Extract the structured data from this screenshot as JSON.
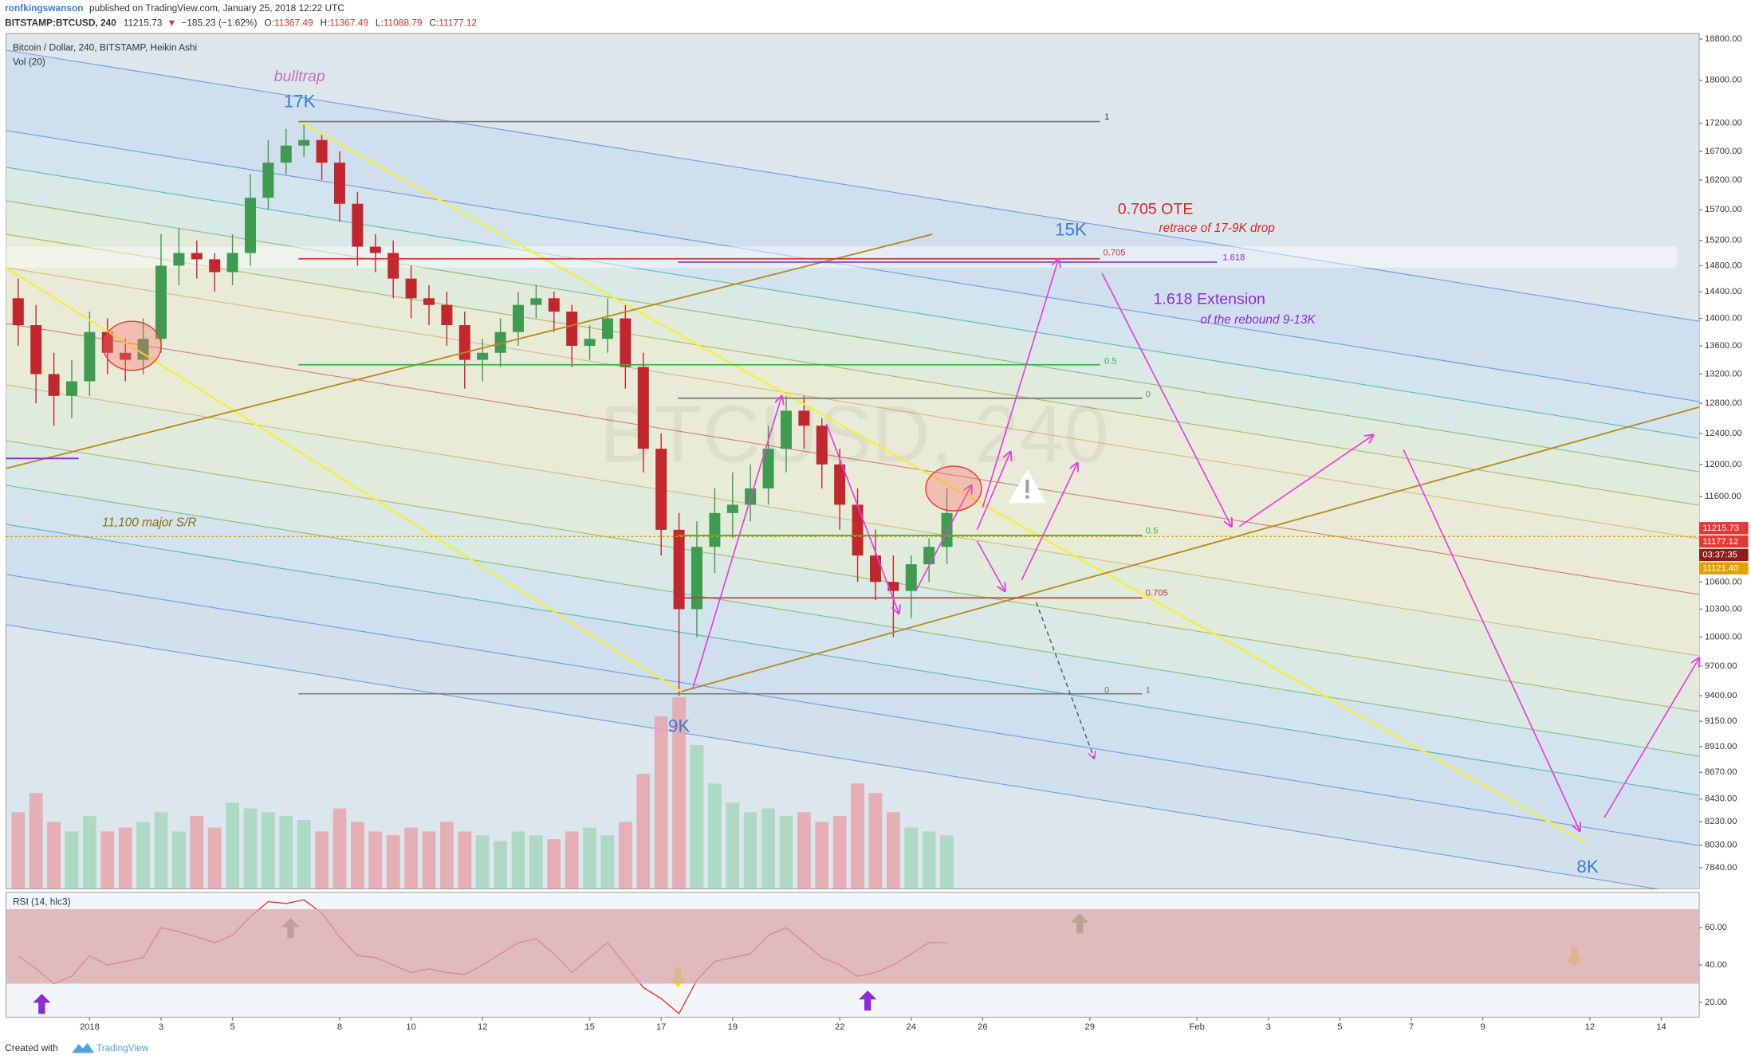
{
  "header": {
    "user": "ronfkingswanson",
    "published": "published on TradingView.com, January 25, 2018 12:22 UTC",
    "symbol": "BITSTAMP:BTCUSD, 240",
    "last": "11215.73",
    "arrow": "▼",
    "change": "−185.23 (−1.62%)",
    "ohlc": [
      [
        "O:",
        "11367.49"
      ],
      [
        "H:",
        "11367.49"
      ],
      [
        "L:",
        "11088.79"
      ],
      [
        "C:",
        "11177.12"
      ]
    ]
  },
  "chart_data": [
    {
      "type": "candlestick",
      "title": "Bitcoin / Dollar, 240, BITSTAMP, Heikin Ashi",
      "watermark": "BTCUSD, 240",
      "log_scale": true,
      "x": [
        -1,
        -0.5,
        0,
        0.5,
        1,
        1.5,
        2,
        2.5,
        3,
        3.5,
        4,
        4.5,
        5,
        5.5,
        6,
        6.5,
        7,
        7.5,
        8,
        8.5,
        9,
        9.5,
        10,
        10.5,
        11,
        11.5,
        12,
        12.5,
        13,
        13.5,
        14,
        14.5,
        15,
        15.5,
        16,
        16.5,
        17,
        17.5,
        18,
        18.5,
        19,
        19.5,
        20,
        20.5,
        21,
        21.5,
        22,
        22.5,
        23,
        23.5,
        24,
        24.5,
        25
      ],
      "open": [
        14300,
        13900,
        13200,
        12900,
        13100,
        13800,
        13500,
        13400,
        13700,
        14800,
        15000,
        14900,
        14700,
        15000,
        15900,
        16500,
        16800,
        16900,
        16500,
        15800,
        15100,
        15000,
        14600,
        14300,
        14200,
        13900,
        13400,
        13500,
        13800,
        14200,
        14300,
        14100,
        13600,
        13700,
        14000,
        13300,
        12200,
        11200,
        10300,
        11000,
        11400,
        11500,
        11700,
        12200,
        12700,
        12500,
        12000,
        11500,
        10900,
        10600,
        10500,
        10800,
        11000
      ],
      "high": [
        14600,
        14200,
        13500,
        13400,
        14100,
        14000,
        13700,
        14000,
        15300,
        15400,
        15200,
        15000,
        15300,
        16300,
        16900,
        17100,
        17200,
        17000,
        16700,
        16000,
        15300,
        15200,
        14800,
        14500,
        14400,
        14100,
        13700,
        14000,
        14400,
        14500,
        14400,
        14200,
        13900,
        14300,
        14200,
        13500,
        12400,
        11400,
        11300,
        11700,
        11900,
        12000,
        12500,
        12900,
        12900,
        12600,
        12200,
        11700,
        11200,
        10900,
        10900,
        11100,
        11700
      ],
      "low": [
        13600,
        12800,
        12500,
        12600,
        12900,
        13200,
        13100,
        13200,
        13500,
        14500,
        14600,
        14400,
        14500,
        14800,
        15700,
        16300,
        16600,
        16200,
        15500,
        14800,
        14700,
        14300,
        14000,
        13900,
        13600,
        13000,
        13100,
        13300,
        13600,
        14000,
        13800,
        13300,
        13400,
        13500,
        13000,
        11900,
        10900,
        9400,
        10000,
        10700,
        11100,
        11300,
        11500,
        11900,
        12200,
        11700,
        11200,
        10600,
        10400,
        10000,
        10200,
        10600,
        10800
      ],
      "close": [
        13900,
        13200,
        12900,
        13100,
        13800,
        13500,
        13400,
        13700,
        14800,
        15000,
        14900,
        14700,
        15000,
        15900,
        16500,
        16800,
        16900,
        16500,
        15800,
        15100,
        15000,
        14600,
        14300,
        14200,
        13900,
        13400,
        13500,
        13800,
        14200,
        14300,
        14100,
        13600,
        13700,
        14000,
        13300,
        12200,
        11200,
        10300,
        11000,
        11400,
        11500,
        11700,
        12200,
        12700,
        12500,
        12000,
        11500,
        10900,
        10600,
        10500,
        10800,
        11000,
        11400
      ],
      "up_color": "#3e9b4f",
      "down_color": "#c1272d",
      "volume": {
        "name": "Vol (20)",
        "up_color": "#a6d6bd",
        "down_color": "#e7a4ab",
        "values": [
          40,
          50,
          35,
          30,
          38,
          30,
          32,
          35,
          40,
          30,
          38,
          32,
          45,
          42,
          40,
          38,
          36,
          30,
          42,
          35,
          30,
          28,
          32,
          30,
          35,
          30,
          28,
          25,
          30,
          28,
          26,
          30,
          32,
          28,
          35,
          60,
          90,
          100,
          75,
          55,
          45,
          40,
          42,
          38,
          40,
          35,
          38,
          55,
          50,
          40,
          32,
          30,
          28
        ]
      },
      "xlim": [
        -1.34,
        46.06
      ],
      "xticks": [
        {
          "value": 1,
          "label": "2018"
        },
        3,
        5,
        8,
        10,
        12,
        15,
        17,
        19,
        22,
        24,
        26,
        29,
        {
          "value": 32,
          "label": "Feb"
        },
        {
          "value": 34,
          "label": "3"
        },
        {
          "value": 36,
          "label": "5"
        },
        {
          "value": 38,
          "label": "7"
        },
        {
          "value": 40,
          "label": "9"
        },
        {
          "value": 43,
          "label": "12"
        },
        {
          "value": 45,
          "label": "14"
        }
      ],
      "ylim": [
        7666,
        18911
      ],
      "yticks": [
        {
          "value": 18800,
          "label": "18800.00"
        },
        {
          "value": 18000,
          "label": "18000.00"
        },
        {
          "value": 17200,
          "label": "17200.00"
        },
        {
          "value": 16700,
          "label": "16700.00"
        },
        {
          "value": 16200,
          "label": "16200.00"
        },
        {
          "value": 15700,
          "label": "15700.00"
        },
        {
          "value": 15200,
          "label": "15200.00"
        },
        {
          "value": 14800,
          "label": "14800.00"
        },
        {
          "value": 14400,
          "label": "14400.00"
        },
        {
          "value": 14000,
          "label": "14000.00"
        },
        {
          "value": 13600,
          "label": "13600.00"
        },
        {
          "value": 13200,
          "label": "13200.00"
        },
        {
          "value": 12800,
          "label": "12800.00"
        },
        {
          "value": 12400,
          "label": "12400.00"
        },
        {
          "value": 12000,
          "label": "12000.00"
        },
        {
          "value": 11600,
          "label": "11600.00"
        },
        {
          "value": 10600,
          "label": "10600.00"
        },
        {
          "value": 10300,
          "label": "10300.00"
        },
        {
          "value": 10000,
          "label": "10000.00"
        },
        {
          "value": 9700,
          "label": "9700.00"
        },
        {
          "value": 9400,
          "label": "9400.00"
        },
        {
          "value": 9150,
          "label": "9150.00"
        },
        {
          "value": 8910,
          "label": "8910.00"
        },
        {
          "value": 8670,
          "label": "8670.00"
        },
        {
          "value": 8430,
          "label": "8430.00"
        },
        {
          "value": 8230,
          "label": "8230.00"
        },
        {
          "value": 8030,
          "label": "8030.00"
        },
        {
          "value": 7840,
          "label": "7840.00"
        }
      ],
      "price_labels": [
        {
          "text": "11215.73",
          "color": "#e53935"
        },
        {
          "text": "11177.12",
          "color": "#e53935"
        },
        {
          "text": "03:37:35",
          "color": "#8e1b1b"
        },
        {
          "text": "11121.40",
          "color": "#e0a000"
        }
      ]
    },
    {
      "type": "line",
      "title": "RSI (14, hlc3)",
      "color": "#e53935",
      "band": [
        30,
        70
      ],
      "band_color": "#d8a7ab",
      "x": [
        -1,
        -0.5,
        0,
        0.5,
        1,
        1.5,
        2,
        2.5,
        3,
        3.5,
        4,
        4.5,
        5,
        5.5,
        6,
        6.5,
        7,
        7.5,
        8,
        8.5,
        9,
        9.5,
        10,
        10.5,
        11,
        11.5,
        12,
        12.5,
        13,
        13.5,
        14,
        14.5,
        15,
        15.5,
        16,
        16.5,
        17,
        17.5,
        18,
        18.5,
        19,
        19.5,
        20,
        20.5,
        21,
        21.5,
        22,
        22.5,
        23,
        23.5,
        24,
        24.5,
        25
      ],
      "values": [
        45,
        38,
        30,
        34,
        45,
        40,
        42,
        44,
        60,
        58,
        55,
        52,
        56,
        66,
        74,
        73,
        75,
        68,
        55,
        45,
        44,
        40,
        36,
        38,
        36,
        35,
        40,
        46,
        52,
        54,
        46,
        36,
        44,
        52,
        40,
        28,
        22,
        14,
        32,
        42,
        44,
        46,
        56,
        60,
        52,
        44,
        40,
        34,
        36,
        40,
        46,
        52,
        52
      ],
      "ylim": [
        12,
        79
      ],
      "yticks": [
        {
          "value": 60,
          "label": "60.00"
        },
        {
          "value": 40,
          "label": "40.00"
        },
        {
          "value": 20,
          "label": "20.00"
        }
      ]
    }
  ],
  "annotations": {
    "labels": [
      "bulltrap",
      "17K",
      "9K",
      "15K",
      "8K",
      "0.705 OTE",
      "retrace of 17-9K drop",
      "1.618 Extension",
      "of the rebound 9-13K",
      "11,100 major S/R"
    ],
    "fib": [
      "1",
      "0.705",
      "1.618",
      "0.5",
      "0",
      "0.5",
      "0.705",
      "0",
      "1"
    ]
  },
  "footer": {
    "created": "Created with",
    "brand": "TradingView"
  }
}
